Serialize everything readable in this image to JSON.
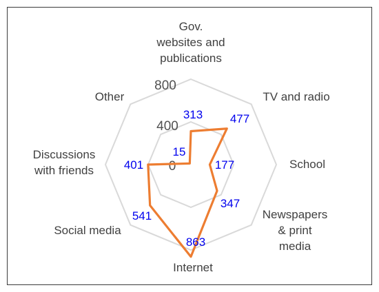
{
  "chart_data": {
    "type": "radar",
    "categories": [
      "Gov. websites and publications",
      "TV and radio",
      "School",
      "Newspapers & print media",
      "Internet",
      "Social media",
      "Discussions with friends",
      "Other"
    ],
    "category_lines": [
      [
        "Gov.",
        "websites and",
        "publications"
      ],
      [
        "TV and radio"
      ],
      [
        "School"
      ],
      [
        "Newspapers",
        "& print",
        "media"
      ],
      [
        "Internet"
      ],
      [
        "Social media"
      ],
      [
        "Discussions",
        "with friends"
      ],
      [
        "Other"
      ]
    ],
    "values": [
      313,
      477,
      177,
      347,
      863,
      541,
      401,
      15
    ],
    "value_labels": [
      "313",
      "477",
      "177",
      "347",
      "863",
      "541",
      "401",
      "15"
    ],
    "rlim": [
      0,
      800
    ],
    "ticks": [
      "0",
      "400",
      "800"
    ],
    "grid": true,
    "series_color": "#ED7D31",
    "grid_color": "#D9D9D9",
    "label_color": "#0000EE"
  }
}
